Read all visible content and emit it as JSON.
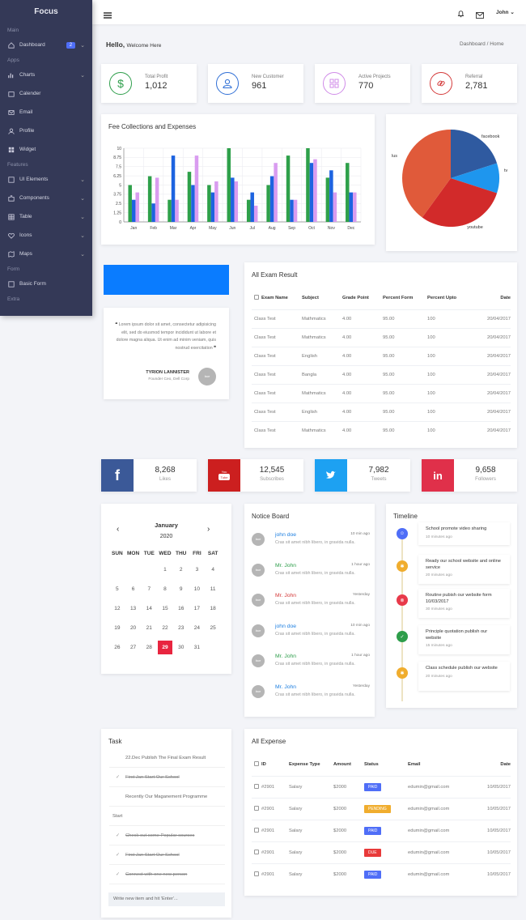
{
  "sidebar": {
    "brand": "Focus",
    "sections": {
      "main": "Main",
      "apps": "Apps",
      "features": "Features",
      "form": "Form",
      "extra": "Extra"
    },
    "items": [
      {
        "label": "Dashboard",
        "badge": "2"
      },
      {
        "label": "Charts"
      },
      {
        "label": "Calender"
      },
      {
        "label": "Email"
      },
      {
        "label": "Profile"
      },
      {
        "label": "Widget"
      },
      {
        "label": "UI Elements"
      },
      {
        "label": "Components"
      },
      {
        "label": "Table"
      },
      {
        "label": "Icons"
      },
      {
        "label": "Maps"
      },
      {
        "label": "Basic Form"
      }
    ]
  },
  "topbar": {
    "user": "John"
  },
  "header": {
    "hello": "Hello,",
    "welcome": "Welcome Here",
    "crumb1": "Dashboard",
    "sep": "/",
    "crumb2": "Home"
  },
  "stats": [
    {
      "label": "Total Profit",
      "value": "1,012",
      "color": "#2e9e4b"
    },
    {
      "label": "New Customer",
      "value": "961",
      "color": "#2f6fd6"
    },
    {
      "label": "Active Projects",
      "value": "770",
      "color": "#d08be8"
    },
    {
      "label": "Referral",
      "value": "2,781",
      "color": "#d43a3a"
    }
  ],
  "chart_data": [
    {
      "type": "bar",
      "title": "Fee Collections and Expenses",
      "categories": [
        "Jan",
        "Feb",
        "Mar",
        "Apr",
        "May",
        "Jun",
        "Jul",
        "Aug",
        "Sep",
        "Oct",
        "Nov",
        "Dec"
      ],
      "yticks": [
        "0",
        "1.25",
        "2.5",
        "3.75",
        "5",
        "6.25",
        "7.5",
        "8.75",
        "10"
      ],
      "ylim": [
        0,
        10
      ],
      "series": [
        {
          "color": "#2ea04a",
          "values": [
            5,
            6.2,
            3,
            6.8,
            5,
            10,
            3,
            5,
            9,
            10,
            6,
            8
          ]
        },
        {
          "color": "#1d63e0",
          "values": [
            3,
            2.5,
            9,
            5,
            4,
            6,
            4,
            6.2,
            3,
            8,
            7,
            4
          ]
        },
        {
          "color": "#d99cf0",
          "values": [
            4,
            6,
            3,
            9,
            5.5,
            5.5,
            2.2,
            8,
            3,
            8.5,
            4,
            4
          ]
        }
      ]
    },
    {
      "type": "pie",
      "labels": [
        "facebook",
        "tv",
        "youtube",
        "lus"
      ],
      "values": [
        20,
        10,
        30,
        40
      ],
      "colors": [
        "#2f5aa0",
        "#1e96ee",
        "#d22a2a",
        "#e05a3a"
      ]
    }
  ],
  "exam": {
    "title": "All Exam Result",
    "headers": [
      "Exam Name",
      "Subject",
      "Grade Point",
      "Percent Form",
      "Percent Upto",
      "Date"
    ],
    "rows": [
      [
        "Class Test",
        "Mathmatics",
        "4.00",
        "95.00",
        "100",
        "20/04/2017"
      ],
      [
        "Class Test",
        "Mathmatics",
        "4.00",
        "95.00",
        "100",
        "20/04/2017"
      ],
      [
        "Class Test",
        "English",
        "4.00",
        "95.00",
        "100",
        "20/04/2017"
      ],
      [
        "Class Test",
        "Bangla",
        "4.00",
        "95.00",
        "100",
        "20/04/2017"
      ],
      [
        "Class Test",
        "Mathmatics",
        "4.00",
        "95.00",
        "100",
        "20/04/2017"
      ],
      [
        "Class Test",
        "English",
        "4.00",
        "95.00",
        "100",
        "20/04/2017"
      ],
      [
        "Class Test",
        "Mathmatics",
        "4.00",
        "95.00",
        "100",
        "20/04/2017"
      ]
    ]
  },
  "quote": {
    "text": "Lorem ipsum dolor sit amet, consectetur adipisicing elit, sed do eiusmod tempor incididunt ut labore et dolore magna aliqua. Ut enim ad minim veniam, quis nostrud exercitation",
    "author": "TYRION LANNISTER",
    "role": "Founder Ceo, Dell Corp",
    "avatar": "face"
  },
  "social": [
    {
      "value": "8,268",
      "label": "Likes",
      "color": "#3b5998"
    },
    {
      "value": "12,545",
      "label": "Subscribes",
      "color": "#cc1f1f"
    },
    {
      "value": "7,982",
      "label": "Tweets",
      "color": "#1da1f2"
    },
    {
      "value": "9,658",
      "label": "Followers",
      "color": "#e0304a"
    }
  ],
  "calendar": {
    "month": "January",
    "year": "2020",
    "days": [
      "SUN",
      "MON",
      "TUE",
      "WED",
      "THU",
      "FRI",
      "SAT"
    ],
    "weeks": [
      [
        "",
        "",
        "",
        "1",
        "2",
        "3",
        "4"
      ],
      [
        "5",
        "6",
        "7",
        "8",
        "9",
        "10",
        "11"
      ],
      [
        "12",
        "13",
        "14",
        "15",
        "16",
        "17",
        "18"
      ],
      [
        "19",
        "20",
        "21",
        "22",
        "23",
        "24",
        "25"
      ],
      [
        "26",
        "27",
        "28",
        "29",
        "30",
        "31",
        ""
      ]
    ],
    "today": "29"
  },
  "notice": {
    "title": "Notice Board",
    "avatar": "face",
    "items": [
      {
        "name": "john doe",
        "time": "10 min ago",
        "text": "Cras sit amet nibh libero, in gravida nulla.",
        "color": "#1e7fe0"
      },
      {
        "name": "Mr. John",
        "time": "1 hour ago",
        "text": "Cras sit amet nibh libero, in gravida nulla.",
        "color": "#2e9e4b"
      },
      {
        "name": "Mr. John",
        "time": "Yesterday",
        "text": "Cras sit amet nibh libero, in gravida nulla.",
        "color": "#d43a3a"
      },
      {
        "name": "john doe",
        "time": "10 min ago",
        "text": "Cras sit amet nibh libero, in gravida nulla.",
        "color": "#1e7fe0"
      },
      {
        "name": "Mr. John",
        "time": "1 hour ago",
        "text": "Cras sit amet nibh libero, in gravida nulla.",
        "color": "#2e9e4b"
      },
      {
        "name": "Mr. John",
        "time": "Yesterday",
        "text": "Cras sit amet nibh libero, in gravida nulla.",
        "color": "#1e7fe0"
      }
    ]
  },
  "timeline": {
    "title": "Timeline",
    "items": [
      {
        "text": "School promote video sharing",
        "time": "10 minutes ago",
        "color": "#4f6ef7"
      },
      {
        "text": "Ready our school website and online service",
        "time": "20 minutes ago",
        "color": "#f0ad2e"
      },
      {
        "text": "Routine pubish our website form 10/03/2017",
        "time": "30 minutes ago",
        "color": "#e83a4a"
      },
      {
        "text": "Principle quotation publish our website",
        "time": "15 minutes ago",
        "color": "#2e9e4b"
      },
      {
        "text": "Class schedule publish our website",
        "time": "20 minutes ago",
        "color": "#f0ad2e"
      }
    ]
  },
  "task": {
    "title": "Task",
    "items": [
      {
        "text": "22.Dec Publish The Final Exam Result",
        "done": false
      },
      {
        "text": "First Jan Start Our School",
        "done": true
      },
      {
        "text": "Recently Our Maganement Programme",
        "done": false
      },
      {
        "text": "Start",
        "done": false
      },
      {
        "text": "Check out some Popular courses",
        "done": true
      },
      {
        "text": "First Jan Start Our School",
        "done": true
      },
      {
        "text": "Connect with one new person",
        "done": true
      }
    ],
    "placeholder": "Write new item and hit 'Enter'..."
  },
  "expense": {
    "title": "All Expense",
    "headers": [
      "ID",
      "Expense Type",
      "Amount",
      "Status",
      "Email",
      "Date"
    ],
    "rows": [
      [
        "#2901",
        "Salary",
        "$2000",
        "PAID",
        "edumin@gmail.com",
        "10/05/2017",
        "#4f6ef7"
      ],
      [
        "#2901",
        "Salary",
        "$2000",
        "PENDING",
        "edumin@gmail.com",
        "10/05/2017",
        "#f0ad2e"
      ],
      [
        "#2901",
        "Salary",
        "$2000",
        "PAID",
        "edumin@gmail.com",
        "10/05/2017",
        "#4f6ef7"
      ],
      [
        "#2901",
        "Salary",
        "$2000",
        "DUE",
        "edumin@gmail.com",
        "10/05/2017",
        "#e83a3a"
      ],
      [
        "#2901",
        "Salary",
        "$2000",
        "PAID",
        "edumin@gmail.com",
        "10/05/2017",
        "#4f6ef7"
      ]
    ]
  }
}
